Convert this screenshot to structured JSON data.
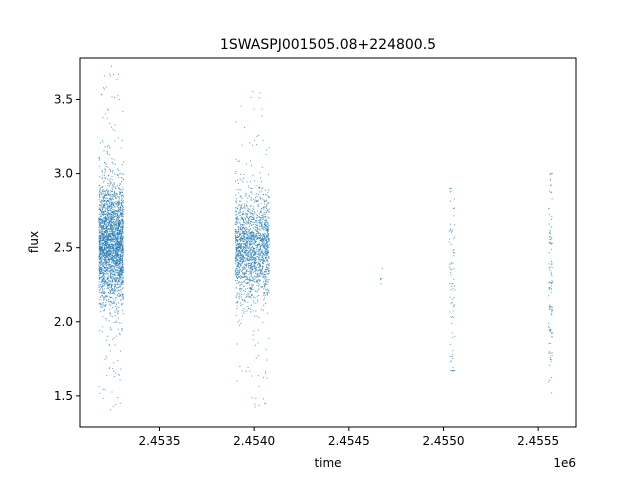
{
  "chart_data": {
    "type": "scatter",
    "title": "1SWASPJ001505.08+224800.5",
    "xlabel": "time",
    "ylabel": "flux",
    "x_offset_label": "1e6",
    "xlim": [
      2453080,
      2455700
    ],
    "ylim": [
      1.29,
      3.78
    ],
    "x_ticks": [
      2453500,
      2454000,
      2454500,
      2455000,
      2455500
    ],
    "x_tick_labels": [
      "2.4535",
      "2.4540",
      "2.4545",
      "2.4550",
      "2.4555"
    ],
    "y_ticks": [
      1.5,
      2.0,
      2.5,
      3.0,
      3.5
    ],
    "y_tick_labels": [
      "1.5",
      "2.0",
      "2.5",
      "3.0",
      "3.5"
    ],
    "grid": false,
    "legend": "none",
    "point_color": "#1f77b4",
    "clusters": [
      {
        "x_range": [
          2453180,
          2453310
        ],
        "y_median": 2.52,
        "y_spread": 0.2,
        "y_range": [
          1.4,
          3.73
        ],
        "count": 2600
      },
      {
        "x_range": [
          2453900,
          2454080
        ],
        "y_median": 2.5,
        "y_spread": 0.18,
        "y_range": [
          1.4,
          3.58
        ],
        "count": 1800
      },
      {
        "x_range": [
          2454665,
          2454680
        ],
        "y_median": 2.28,
        "y_spread": 0.06,
        "y_range": [
          2.18,
          2.36
        ],
        "count": 5
      },
      {
        "x_range": [
          2455030,
          2455060
        ],
        "y_median": 2.3,
        "y_spread": 0.35,
        "y_range": [
          1.67,
          2.9
        ],
        "count": 80
      },
      {
        "x_range": [
          2455555,
          2455575
        ],
        "y_median": 2.3,
        "y_spread": 0.4,
        "y_range": [
          1.52,
          3.0
        ],
        "count": 110
      }
    ]
  }
}
